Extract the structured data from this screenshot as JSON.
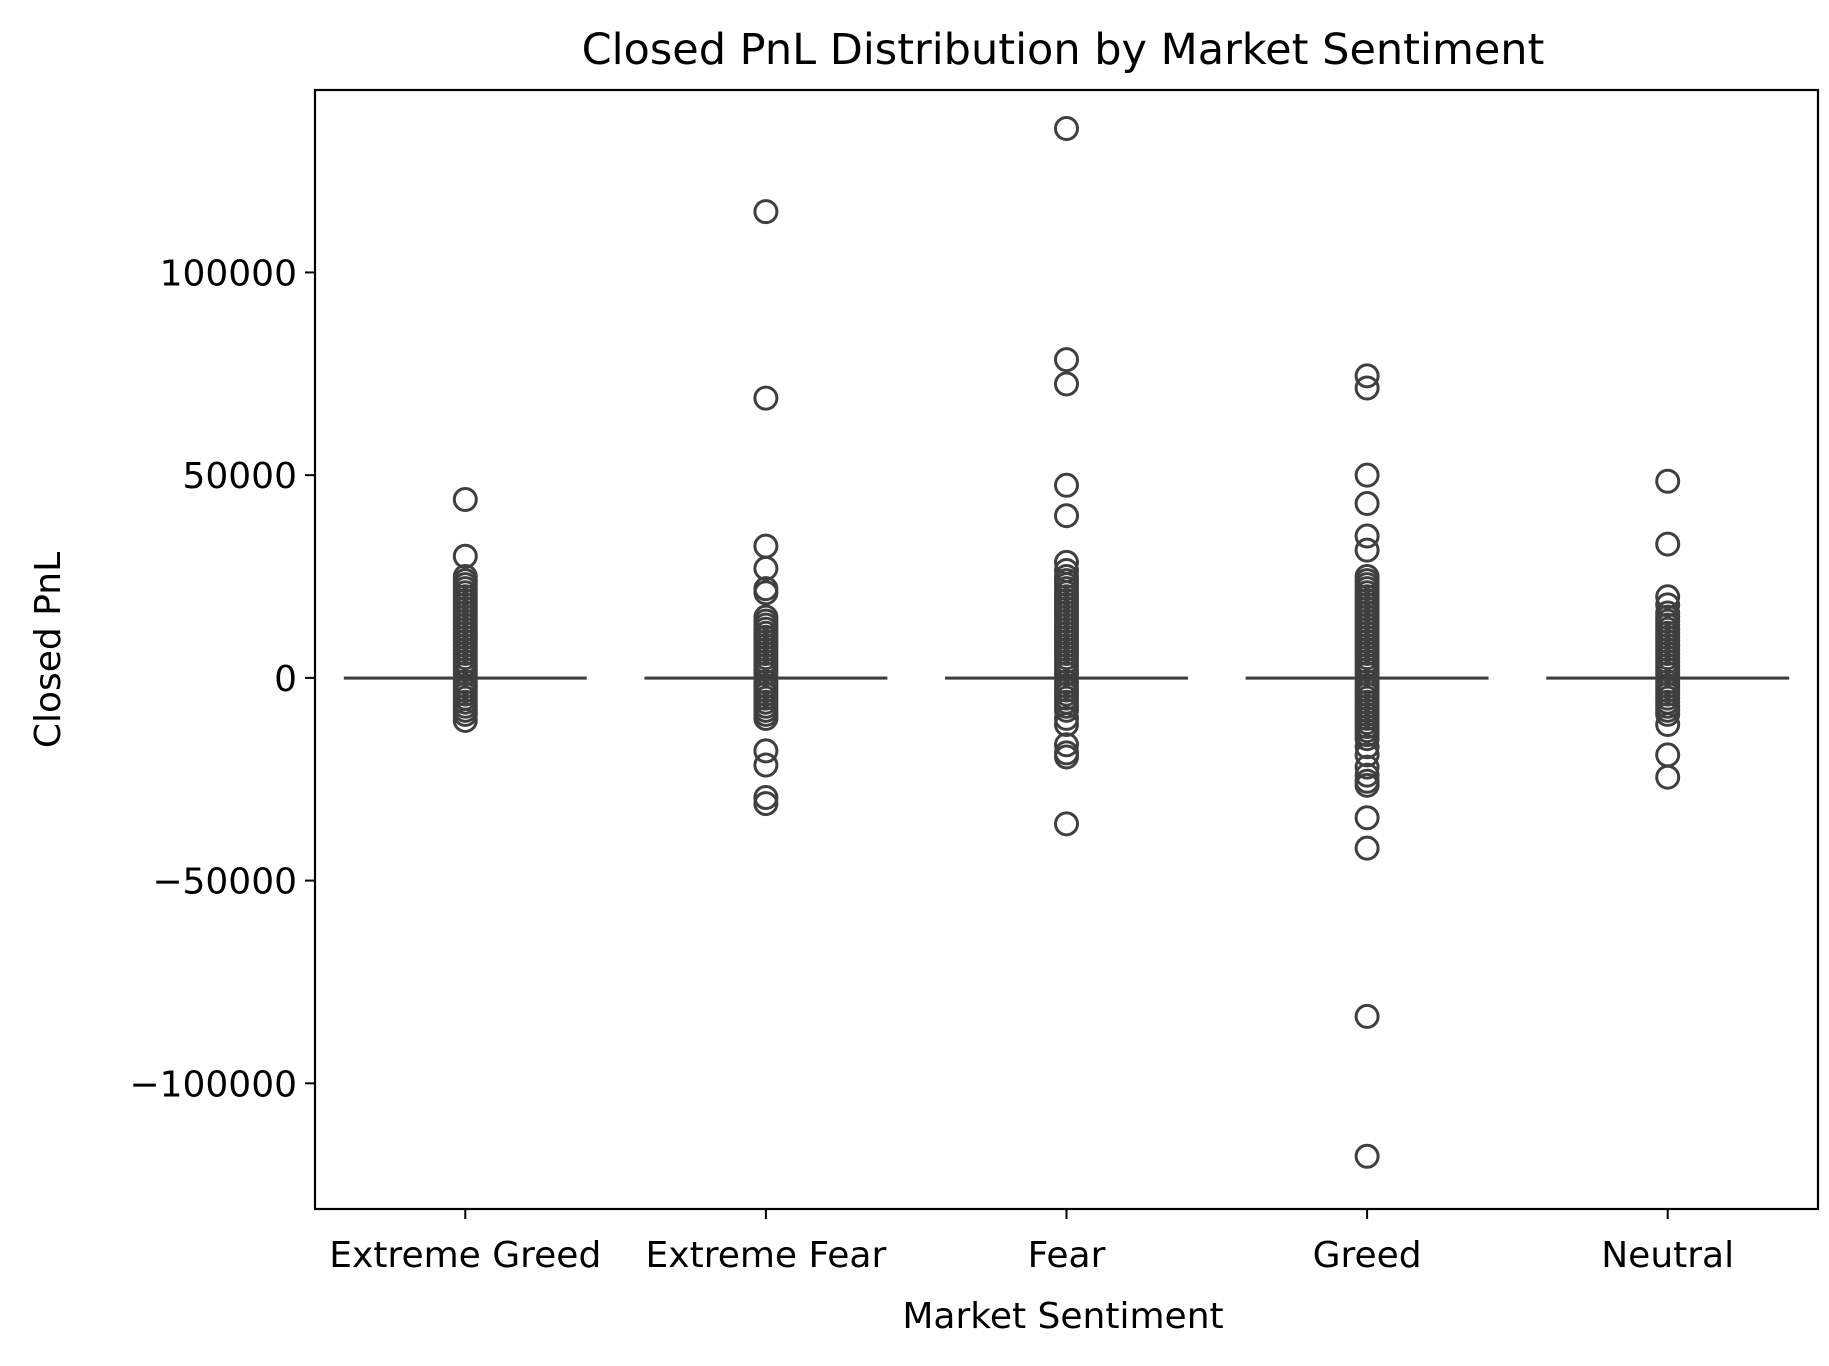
{
  "chart_data": {
    "type": "box",
    "title": "Closed PnL Distribution by Market Sentiment",
    "xlabel": "Market Sentiment",
    "ylabel": "Closed PnL",
    "ylim": [
      -131000,
      145000
    ],
    "yticks": [
      100000,
      50000,
      0,
      -50000,
      -100000
    ],
    "ytick_labels": [
      "100000",
      "50000",
      "0",
      "−50000",
      "−100000"
    ],
    "categories": [
      "Extreme Greed",
      "Extreme Fear",
      "Fear",
      "Greed",
      "Neutral"
    ],
    "grid": false,
    "colors": {
      "box": "#3f3f3f",
      "axis": "#000000",
      "background": "#ffffff"
    },
    "series": [
      {
        "category": "Extreme Greed",
        "q1": 0,
        "median": 0,
        "q3": 0,
        "whisker_low": 0,
        "whisker_high": 0,
        "outliers": [
          44000,
          30000,
          25000,
          24000,
          23000,
          22000,
          21000,
          20000,
          19000,
          18000,
          17000,
          16000,
          15000,
          14000,
          13000,
          12000,
          11000,
          10000,
          9000,
          8000,
          7000,
          6000,
          5000,
          4000,
          3000,
          2000,
          1000,
          -1000,
          -2000,
          -3000,
          -4000,
          -5000,
          -6000,
          -7000,
          -8000,
          -9000,
          -10500
        ]
      },
      {
        "category": "Extreme Fear",
        "q1": 0,
        "median": 0,
        "q3": 0,
        "whisker_low": 0,
        "whisker_high": 0,
        "outliers": [
          115000,
          69000,
          32500,
          27000,
          22000,
          21000,
          15000,
          14000,
          13000,
          12000,
          11000,
          10000,
          9000,
          8000,
          7000,
          6000,
          5000,
          4000,
          3000,
          2000,
          1000,
          -1000,
          -2000,
          -3000,
          -4000,
          -5000,
          -6000,
          -7000,
          -8000,
          -9000,
          -10000,
          -18000,
          -21500,
          -29500,
          -31000
        ]
      },
      {
        "category": "Fear",
        "q1": 0,
        "median": 0,
        "q3": 0,
        "whisker_low": 0,
        "whisker_high": 0,
        "outliers": [
          135500,
          78500,
          72500,
          47500,
          40000,
          28500,
          26500,
          25000,
          24000,
          23000,
          22000,
          21000,
          20000,
          19000,
          18000,
          17000,
          16000,
          15000,
          14000,
          13000,
          12000,
          11000,
          10000,
          9000,
          8000,
          7000,
          6000,
          5000,
          4000,
          3000,
          2000,
          1000,
          -1000,
          -2000,
          -3000,
          -4000,
          -5000,
          -6000,
          -7000,
          -8000,
          -10000,
          -11500,
          -16500,
          -18500,
          -19500,
          -36000
        ]
      },
      {
        "category": "Greed",
        "q1": 0,
        "median": 0,
        "q3": 0,
        "whisker_low": 0,
        "whisker_high": 0,
        "outliers": [
          74500,
          71500,
          50000,
          43000,
          35000,
          31500,
          25000,
          24000,
          23000,
          22000,
          21000,
          20000,
          19000,
          18000,
          17000,
          16000,
          15000,
          14000,
          13000,
          12000,
          11000,
          10000,
          9000,
          8000,
          7000,
          6000,
          5000,
          4000,
          3000,
          2000,
          1000,
          -1000,
          -2000,
          -3000,
          -4000,
          -5000,
          -6000,
          -7000,
          -8000,
          -9000,
          -10000,
          -11000,
          -12000,
          -13000,
          -14000,
          -15000,
          -17000,
          -19000,
          -22000,
          -24000,
          -25500,
          -26500,
          -34500,
          -42000,
          -83500,
          -118000
        ]
      },
      {
        "category": "Neutral",
        "q1": 0,
        "median": 0,
        "q3": 0,
        "whisker_low": 0,
        "whisker_high": 0,
        "outliers": [
          48500,
          33000,
          20000,
          18000,
          16000,
          15000,
          14000,
          13000,
          12000,
          11000,
          10000,
          9000,
          8000,
          7000,
          6000,
          5000,
          4000,
          3000,
          2000,
          1000,
          -1000,
          -2000,
          -3000,
          -4000,
          -5000,
          -6000,
          -7000,
          -8000,
          -9000,
          -11500,
          -19000,
          -24500
        ]
      }
    ]
  }
}
